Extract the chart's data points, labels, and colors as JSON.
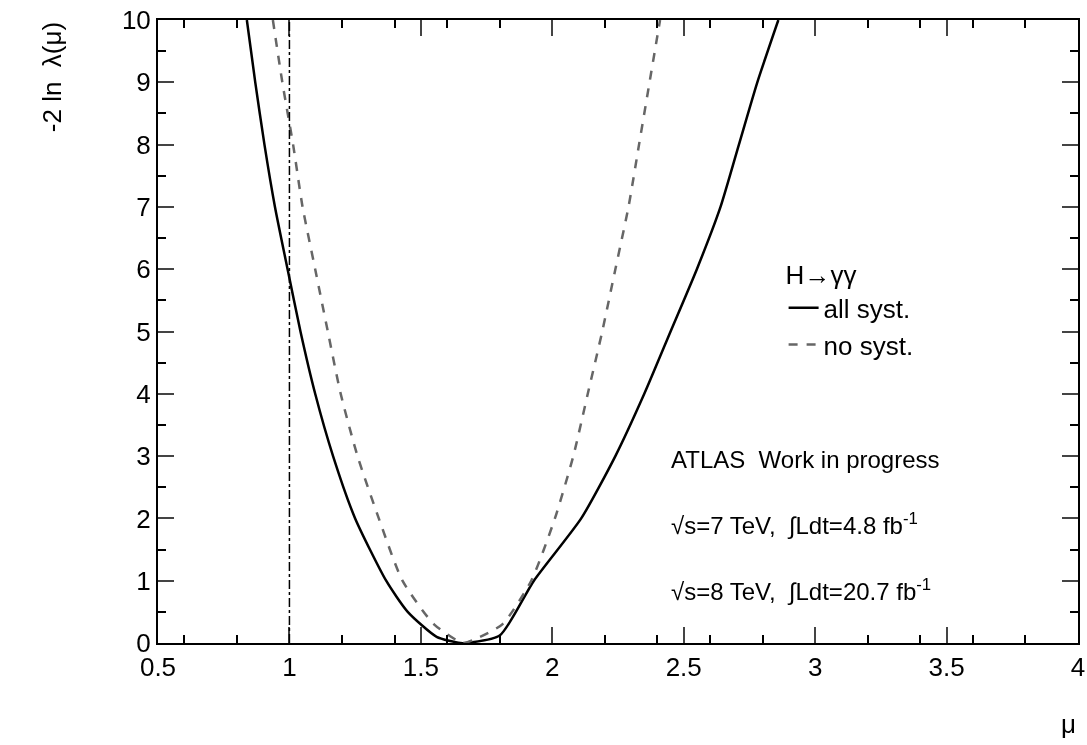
{
  "chart_data": {
    "type": "line",
    "xlabel": "μ",
    "ylabel": "-2 ln  λ(μ)",
    "legend_title": "H→γγ",
    "legend": "right",
    "marker": "none",
    "grid": false,
    "xlim": [
      0.5,
      4
    ],
    "xticks": [
      0.5,
      1,
      1.5,
      2,
      2.5,
      3,
      3.5,
      4
    ],
    "ylim": [
      0,
      10
    ],
    "yticks": [
      0,
      1,
      2,
      3,
      4,
      5,
      6,
      7,
      8,
      9,
      10
    ],
    "series": [
      {
        "name": "all syst.",
        "color": "#000000",
        "line_style": "solid",
        "x": [
          0.838,
          0.87,
          0.905,
          0.945,
          0.993,
          1.042,
          1.098,
          1.166,
          1.25,
          1.368,
          1.45,
          1.56,
          1.65,
          1.67,
          1.8,
          1.93,
          2.11,
          2.24,
          2.35,
          2.45,
          2.55,
          2.64,
          2.71,
          2.78,
          2.86
        ],
        "values": [
          10,
          9,
          8,
          7,
          6,
          5,
          4,
          3,
          2,
          1,
          0.5,
          0.1,
          0,
          0,
          0.12,
          1,
          2,
          3,
          4,
          5,
          6,
          7,
          8,
          9,
          10
        ]
      },
      {
        "name": "no syst.",
        "color": "#666666",
        "line_style": "dashed",
        "x": [
          0.937,
          0.973,
          1.014,
          1.05,
          1.098,
          1.146,
          1.195,
          1.259,
          1.34,
          1.43,
          1.55,
          1.66,
          1.7,
          1.81,
          1.92,
          2.01,
          2.08,
          2.135,
          2.19,
          2.24,
          2.29,
          2.33,
          2.37,
          2.41
        ],
        "values": [
          10,
          9,
          8,
          7,
          6,
          5,
          4,
          3,
          2,
          1,
          0.3,
          0,
          0.05,
          0.3,
          1,
          2,
          3,
          4,
          5,
          6,
          7,
          8,
          9,
          10
        ]
      }
    ],
    "ref_lines": [
      {
        "axis": "x",
        "value": 1,
        "line_style": "dashdot",
        "color": "#000000"
      }
    ],
    "annotations": [
      "ATLAS  Work in progress",
      "√s=7 TeV,  ∫Ldt=4.8 fb$^{-1}$",
      "√s=8 TeV,  ∫Ldt=20.7 fb$^{-1}$"
    ]
  }
}
